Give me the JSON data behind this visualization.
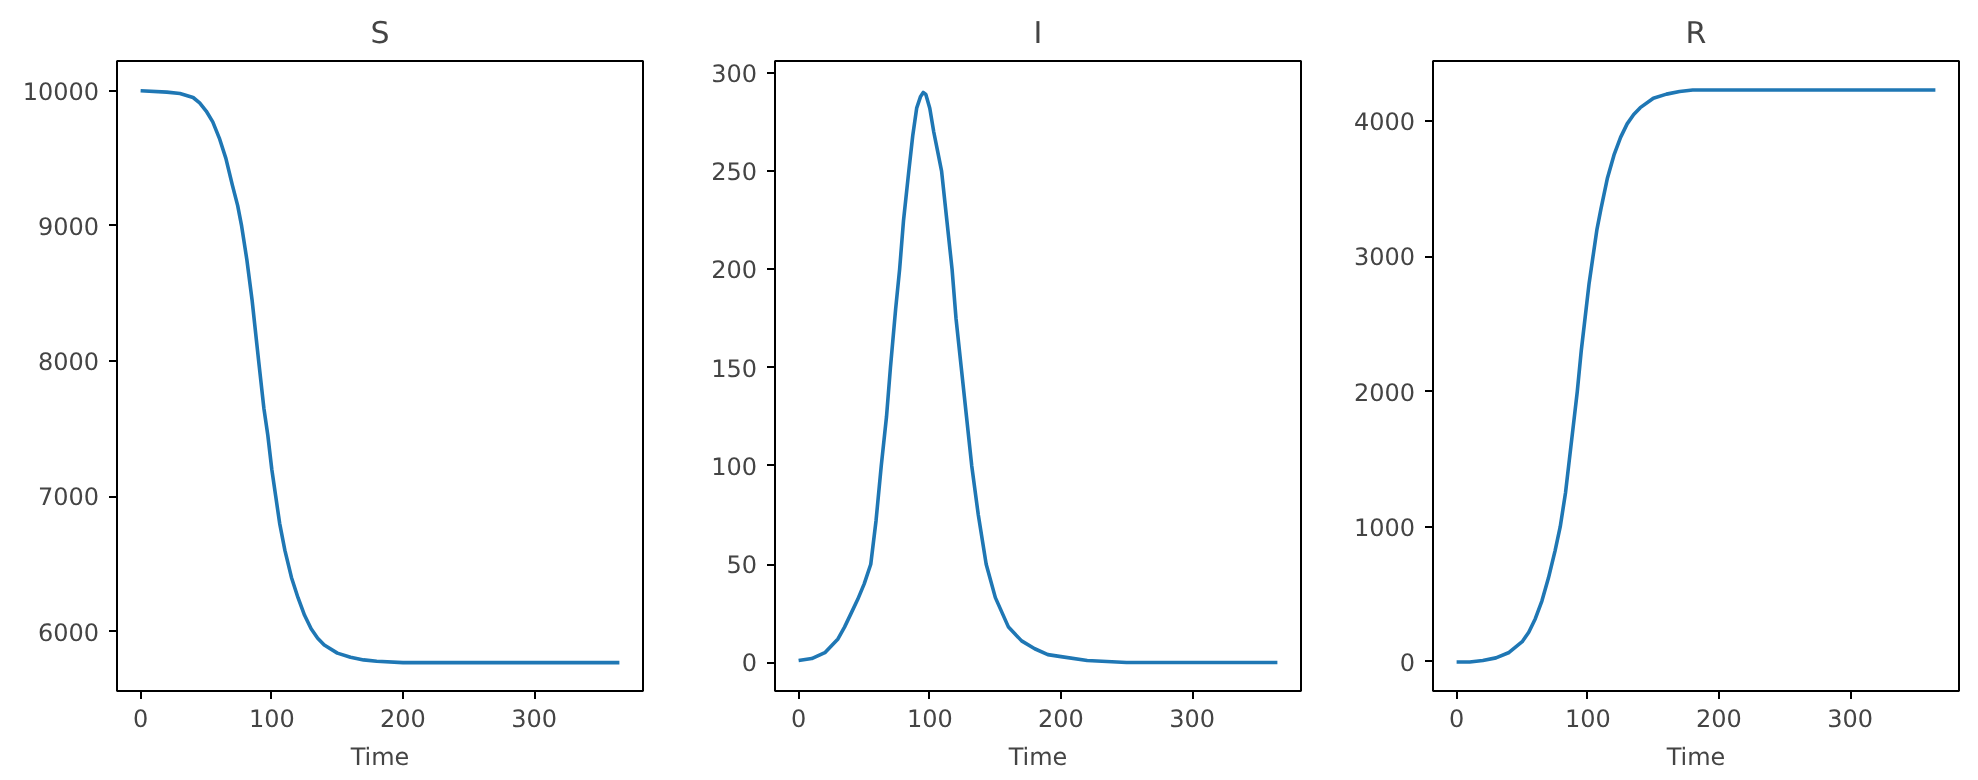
{
  "chart_data": [
    {
      "type": "line",
      "title": "S",
      "xlabel": "Time",
      "xlim": [
        -18,
        383
      ],
      "ylim": [
        5560,
        10220
      ],
      "xticks": [
        0,
        100,
        200,
        300
      ],
      "yticks": [
        6000,
        7000,
        8000,
        9000,
        10000
      ],
      "series": [
        {
          "color": "#1f77b4",
          "x": [
            0,
            20,
            30,
            40,
            45,
            50,
            55,
            60,
            65,
            70,
            74,
            77,
            81,
            85,
            90,
            94,
            97,
            100,
            103,
            106,
            110,
            115,
            120,
            125,
            130,
            135,
            140,
            150,
            160,
            170,
            180,
            200,
            250,
            300,
            365
          ],
          "values": [
            10000,
            9990,
            9980,
            9950,
            9910,
            9850,
            9770,
            9650,
            9500,
            9300,
            9150,
            9000,
            8750,
            8450,
            8000,
            7650,
            7450,
            7200,
            7000,
            6800,
            6600,
            6400,
            6250,
            6120,
            6020,
            5950,
            5900,
            5840,
            5810,
            5790,
            5780,
            5770,
            5770,
            5770,
            5770
          ]
        }
      ]
    },
    {
      "type": "line",
      "title": "I",
      "xlabel": "Time",
      "xlim": [
        -18,
        383
      ],
      "ylim": [
        -14.5,
        306
      ],
      "xticks": [
        0,
        100,
        200,
        300
      ],
      "yticks": [
        0,
        50,
        100,
        150,
        200,
        250,
        300
      ],
      "series": [
        {
          "color": "#1f77b4",
          "x": [
            0,
            10,
            20,
            30,
            35,
            40,
            45,
            50,
            55,
            59,
            63,
            67,
            70,
            74,
            77,
            80,
            84,
            87,
            90,
            93,
            95,
            97,
            100,
            103,
            106,
            109,
            113,
            117,
            120,
            124,
            128,
            132,
            137,
            143,
            150,
            160,
            170,
            180,
            190,
            200,
            220,
            250,
            300,
            365
          ],
          "values": [
            1,
            2,
            5,
            12,
            18,
            25,
            32,
            40,
            50,
            72,
            100,
            125,
            150,
            180,
            200,
            225,
            250,
            268,
            282,
            288,
            290,
            289,
            282,
            270,
            260,
            250,
            225,
            200,
            175,
            150,
            125,
            100,
            75,
            50,
            33,
            18,
            11,
            7,
            4,
            3,
            1,
            0,
            0,
            0
          ]
        }
      ]
    },
    {
      "type": "line",
      "title": "R",
      "xlabel": "Time",
      "xlim": [
        -18,
        383
      ],
      "ylim": [
        -215,
        4445
      ],
      "xticks": [
        0,
        100,
        200,
        300
      ],
      "yticks": [
        0,
        1000,
        2000,
        3000,
        4000
      ],
      "series": [
        {
          "color": "#1f77b4",
          "x": [
            0,
            10,
            20,
            30,
            40,
            50,
            55,
            60,
            65,
            70,
            75,
            79,
            83,
            86,
            89,
            92,
            95,
            98,
            101,
            104,
            107,
            110,
            115,
            120,
            125,
            130,
            135,
            140,
            150,
            160,
            170,
            180,
            200,
            250,
            300,
            365
          ],
          "values": [
            0,
            0,
            10,
            30,
            70,
            150,
            220,
            320,
            450,
            620,
            820,
            1000,
            1250,
            1500,
            1750,
            2000,
            2300,
            2550,
            2800,
            3000,
            3200,
            3350,
            3580,
            3750,
            3880,
            3980,
            4050,
            4100,
            4170,
            4200,
            4220,
            4230,
            4230,
            4230,
            4230,
            4230
          ]
        }
      ]
    }
  ]
}
